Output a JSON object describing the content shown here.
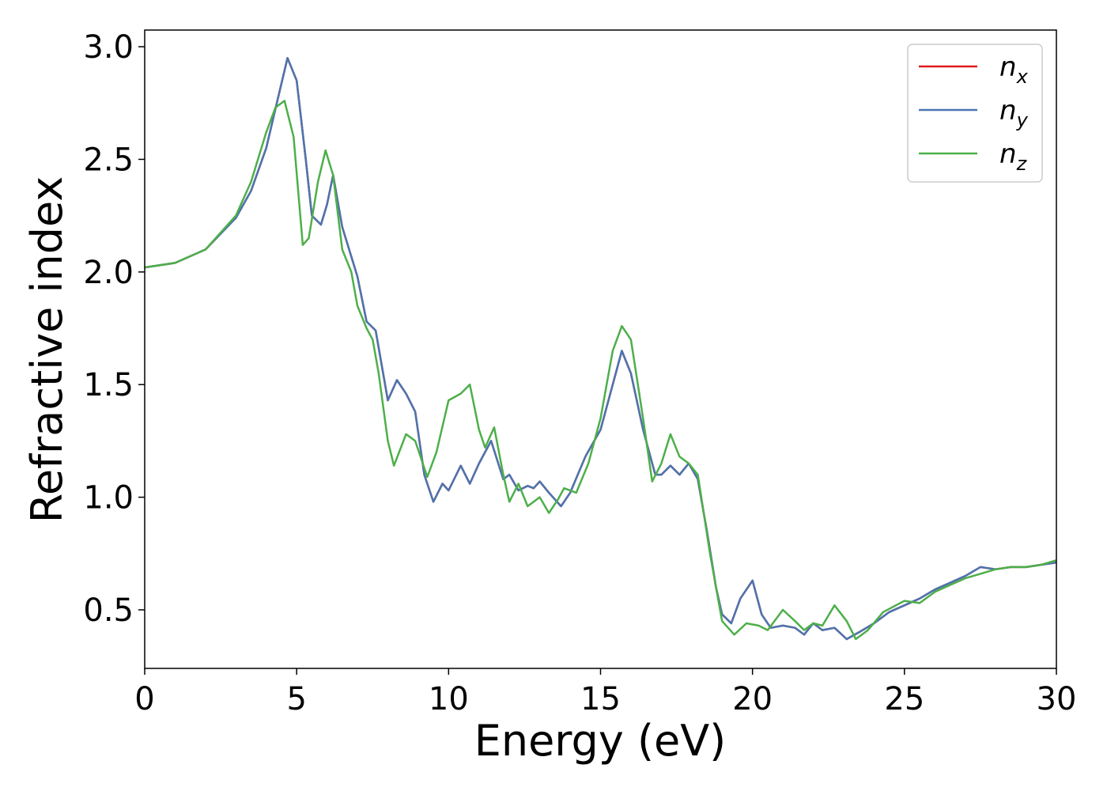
{
  "chart_data": {
    "type": "line",
    "xlabel": "Energy (eV)",
    "ylabel": "Refractive index",
    "xlim": [
      0,
      30
    ],
    "xticks": [
      0,
      5,
      10,
      15,
      20,
      25,
      30
    ],
    "ylim": [
      0.24,
      3.074
    ],
    "yticks": [
      0.5,
      {
        "value": 1.0,
        "label": "1.0"
      },
      1.5,
      {
        "value": 2.0,
        "label": "2.0"
      },
      2.5,
      {
        "value": 3.0,
        "label": "3.0"
      }
    ],
    "legend": "upper right",
    "series": [
      {
        "name": "nx",
        "color": "#e41a1c",
        "x": [
          0,
          1,
          2,
          3,
          3.5,
          4,
          4.4,
          4.7,
          5,
          5.3,
          5.5,
          5.8,
          6,
          6.2,
          6.5,
          7,
          7.3,
          7.6,
          8,
          8.3,
          8.6,
          8.9,
          9.2,
          9.5,
          9.8,
          10,
          10.4,
          10.7,
          11,
          11.4,
          11.8,
          12,
          12.3,
          12.6,
          12.8,
          13,
          13.3,
          13.7,
          14,
          14.5,
          15,
          15.4,
          15.7,
          16,
          16.4,
          16.8,
          17,
          17.3,
          17.6,
          17.9,
          18.2,
          18.5,
          18.8,
          19,
          19.3,
          19.6,
          20,
          20.3,
          20.6,
          21,
          21.4,
          21.7,
          22,
          22.3,
          22.7,
          23.1,
          23.5,
          24,
          24.5,
          25,
          25.5,
          26,
          26.5,
          27,
          27.5,
          28,
          28.5,
          29,
          29.5,
          30
        ],
        "values": [
          2.02,
          2.04,
          2.1,
          2.24,
          2.36,
          2.55,
          2.78,
          2.95,
          2.85,
          2.5,
          2.25,
          2.21,
          2.3,
          2.43,
          2.2,
          1.98,
          1.78,
          1.74,
          1.43,
          1.52,
          1.46,
          1.38,
          1.1,
          0.98,
          1.06,
          1.03,
          1.14,
          1.06,
          1.15,
          1.25,
          1.08,
          1.1,
          1.03,
          1.05,
          1.04,
          1.07,
          1.02,
          0.96,
          1.02,
          1.18,
          1.3,
          1.5,
          1.65,
          1.55,
          1.3,
          1.1,
          1.1,
          1.14,
          1.1,
          1.15,
          1.08,
          0.85,
          0.6,
          0.48,
          0.44,
          0.55,
          0.63,
          0.48,
          0.42,
          0.43,
          0.42,
          0.39,
          0.44,
          0.41,
          0.42,
          0.37,
          0.4,
          0.44,
          0.49,
          0.52,
          0.55,
          0.59,
          0.62,
          0.65,
          0.69,
          0.68,
          0.69,
          0.69,
          0.7,
          0.71
        ]
      },
      {
        "name": "ny",
        "color": "#4a75b0",
        "x": [
          0,
          1,
          2,
          3,
          3.5,
          4,
          4.4,
          4.7,
          5,
          5.3,
          5.5,
          5.8,
          6,
          6.2,
          6.5,
          7,
          7.3,
          7.6,
          8,
          8.3,
          8.6,
          8.9,
          9.2,
          9.5,
          9.8,
          10,
          10.4,
          10.7,
          11,
          11.4,
          11.8,
          12,
          12.3,
          12.6,
          12.8,
          13,
          13.3,
          13.7,
          14,
          14.5,
          15,
          15.4,
          15.7,
          16,
          16.4,
          16.8,
          17,
          17.3,
          17.6,
          17.9,
          18.2,
          18.5,
          18.8,
          19,
          19.3,
          19.6,
          20,
          20.3,
          20.6,
          21,
          21.4,
          21.7,
          22,
          22.3,
          22.7,
          23.1,
          23.5,
          24,
          24.5,
          25,
          25.5,
          26,
          26.5,
          27,
          27.5,
          28,
          28.5,
          29,
          29.5,
          30
        ],
        "values": [
          2.02,
          2.04,
          2.1,
          2.24,
          2.36,
          2.55,
          2.78,
          2.95,
          2.85,
          2.5,
          2.25,
          2.21,
          2.3,
          2.43,
          2.2,
          1.98,
          1.78,
          1.74,
          1.43,
          1.52,
          1.46,
          1.38,
          1.1,
          0.98,
          1.06,
          1.03,
          1.14,
          1.06,
          1.15,
          1.25,
          1.08,
          1.1,
          1.03,
          1.05,
          1.04,
          1.07,
          1.02,
          0.96,
          1.02,
          1.18,
          1.3,
          1.5,
          1.65,
          1.55,
          1.3,
          1.1,
          1.1,
          1.14,
          1.1,
          1.15,
          1.08,
          0.85,
          0.6,
          0.48,
          0.44,
          0.55,
          0.63,
          0.48,
          0.42,
          0.43,
          0.42,
          0.39,
          0.44,
          0.41,
          0.42,
          0.37,
          0.4,
          0.44,
          0.49,
          0.52,
          0.55,
          0.59,
          0.62,
          0.65,
          0.69,
          0.68,
          0.69,
          0.69,
          0.7,
          0.71
        ]
      },
      {
        "name": "nz",
        "color": "#4daf4a",
        "x": [
          0,
          1,
          2,
          3,
          3.5,
          4,
          4.3,
          4.6,
          4.9,
          5.2,
          5.4,
          5.7,
          5.95,
          6.2,
          6.5,
          6.8,
          7,
          7.3,
          7.5,
          7.7,
          8,
          8.2,
          8.6,
          8.9,
          9.3,
          9.6,
          10,
          10.4,
          10.7,
          11,
          11.2,
          11.5,
          11.8,
          12,
          12.3,
          12.6,
          13,
          13.3,
          13.6,
          13.8,
          14.2,
          14.6,
          15,
          15.4,
          15.7,
          16,
          16.4,
          16.7,
          17,
          17.3,
          17.6,
          17.9,
          18.2,
          18.6,
          19,
          19.4,
          19.8,
          20.2,
          20.5,
          21,
          21.4,
          21.7,
          22,
          22.3,
          22.7,
          23.1,
          23.4,
          23.8,
          24.3,
          25,
          25.5,
          26,
          26.5,
          27,
          27.5,
          28,
          28.5,
          29,
          29.5,
          30
        ],
        "values": [
          2.02,
          2.04,
          2.1,
          2.25,
          2.4,
          2.62,
          2.73,
          2.76,
          2.6,
          2.12,
          2.15,
          2.4,
          2.54,
          2.43,
          2.1,
          2.0,
          1.85,
          1.75,
          1.7,
          1.55,
          1.25,
          1.14,
          1.28,
          1.25,
          1.09,
          1.2,
          1.43,
          1.46,
          1.5,
          1.3,
          1.22,
          1.31,
          1.1,
          0.98,
          1.06,
          0.96,
          1.0,
          0.93,
          0.99,
          1.04,
          1.02,
          1.15,
          1.35,
          1.65,
          1.76,
          1.7,
          1.35,
          1.07,
          1.15,
          1.28,
          1.18,
          1.15,
          1.1,
          0.75,
          0.45,
          0.39,
          0.44,
          0.43,
          0.41,
          0.5,
          0.45,
          0.41,
          0.44,
          0.43,
          0.52,
          0.45,
          0.37,
          0.41,
          0.49,
          0.54,
          0.53,
          0.58,
          0.61,
          0.64,
          0.66,
          0.68,
          0.69,
          0.69,
          0.7,
          0.72
        ]
      }
    ]
  }
}
